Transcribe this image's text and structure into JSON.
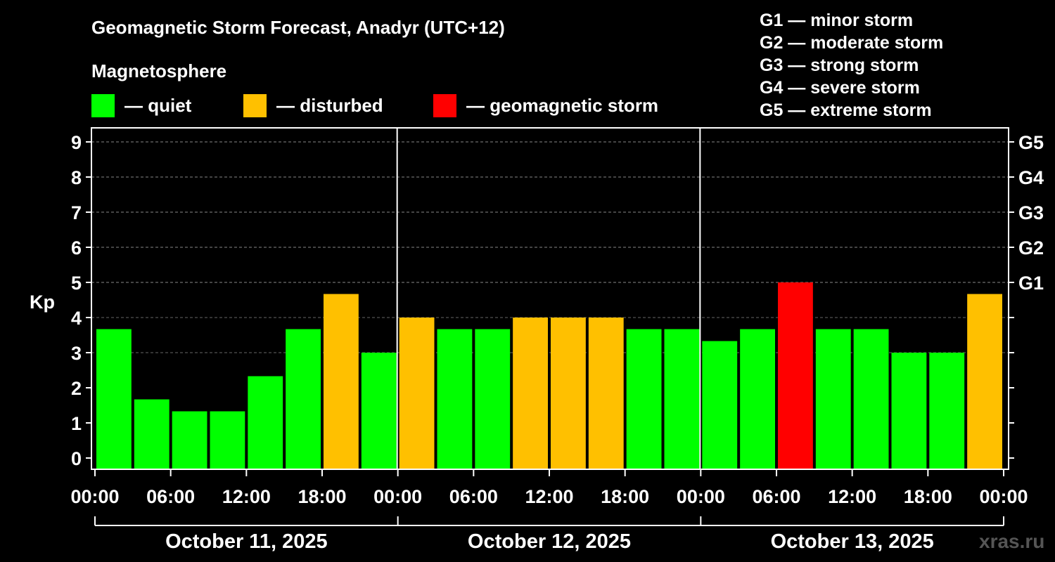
{
  "header": {
    "title": "Geomagnetic Storm Forecast, Anadyr (UTC+12)",
    "subtitle": "Magnetosphere"
  },
  "legend": [
    {
      "label": "— quiet",
      "color": "#00ff00"
    },
    {
      "label": "— disturbed",
      "color": "#ffc000"
    },
    {
      "label": "— geomagnetic storm",
      "color": "#ff0000"
    }
  ],
  "g_legend": [
    "G1 — minor storm",
    "G2 — moderate storm",
    "G3 — strong storm",
    "G4 — severe storm",
    "G5 — extreme storm"
  ],
  "watermark": "xras.ru",
  "chart_data": {
    "type": "bar",
    "ylabel": "Kp",
    "ylim": [
      0,
      9
    ],
    "yticks": [
      0,
      1,
      2,
      3,
      4,
      5,
      6,
      7,
      8,
      9
    ],
    "right_ticks": [
      {
        "value": 5,
        "label": "G1"
      },
      {
        "value": 6,
        "label": "G2"
      },
      {
        "value": 7,
        "label": "G3"
      },
      {
        "value": 8,
        "label": "G4"
      },
      {
        "value": 9,
        "label": "G5"
      }
    ],
    "xticks": [
      "00:00",
      "06:00",
      "12:00",
      "18:00",
      "00:00",
      "06:00",
      "12:00",
      "18:00",
      "00:00",
      "06:00",
      "12:00",
      "18:00",
      "00:00"
    ],
    "days": [
      "October 11, 2025",
      "October 12, 2025",
      "October 13, 2025"
    ],
    "bar_hours": 3,
    "values": [
      3.67,
      1.67,
      1.33,
      1.33,
      2.33,
      3.67,
      4.67,
      3.0,
      4.0,
      3.67,
      3.67,
      4.0,
      4.0,
      4.0,
      3.67,
      3.67,
      3.33,
      3.67,
      5.0,
      3.67,
      3.67,
      3.0,
      3.0,
      4.67
    ],
    "colors": {
      "quiet": "#00ff00",
      "disturbed": "#ffc000",
      "storm": "#ff0000"
    },
    "categories": [
      "quiet",
      "quiet",
      "quiet",
      "quiet",
      "quiet",
      "quiet",
      "disturbed",
      "quiet",
      "disturbed",
      "quiet",
      "quiet",
      "disturbed",
      "disturbed",
      "disturbed",
      "quiet",
      "quiet",
      "quiet",
      "quiet",
      "storm",
      "quiet",
      "quiet",
      "quiet",
      "quiet",
      "disturbed"
    ],
    "grid": true
  }
}
